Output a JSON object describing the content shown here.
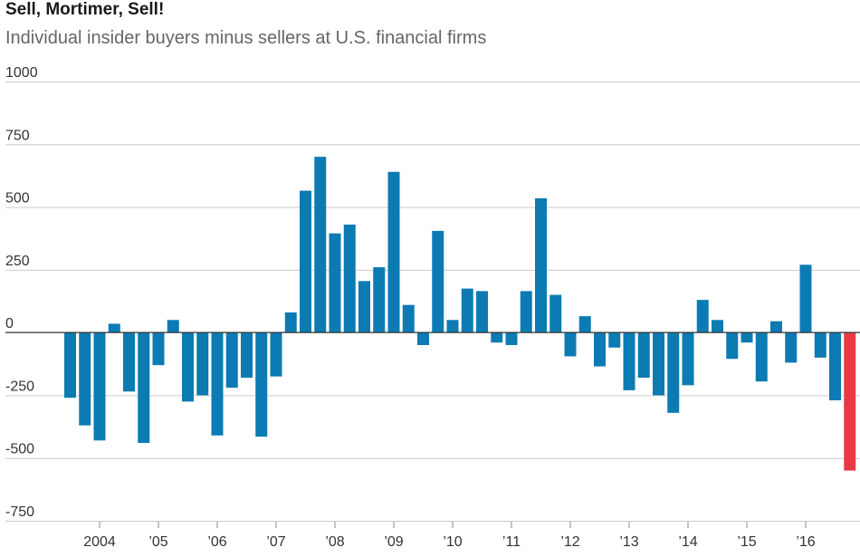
{
  "title": "Sell, Mortimer, Sell!",
  "subtitle": "Individual insider buyers minus sellers at U.S. financial firms",
  "colors": {
    "bar": "#0c7bb3",
    "highlight": "#e83a45",
    "grid": "#cccccc",
    "zero_line": "#333333"
  },
  "chart_data": {
    "type": "bar",
    "title": "Sell, Mortimer, Sell!",
    "subtitle": "Individual insider buyers minus sellers at U.S. financial firms",
    "grid": true,
    "ylim": [
      -750,
      1000
    ],
    "y_ticks": [
      {
        "value": 1000,
        "label": "1000"
      },
      {
        "value": 750,
        "label": "750"
      },
      {
        "value": 500,
        "label": "500"
      },
      {
        "value": 250,
        "label": "250"
      },
      {
        "value": 0,
        "label": "0"
      },
      {
        "value": -250,
        "label": "-250"
      },
      {
        "value": -500,
        "label": "-500"
      },
      {
        "value": -750,
        "label": "-750"
      }
    ],
    "x_ticks": [
      {
        "quarter_index": 2,
        "label": "2004"
      },
      {
        "quarter_index": 6,
        "label": "’05"
      },
      {
        "quarter_index": 10,
        "label": "’06"
      },
      {
        "quarter_index": 14,
        "label": "’07"
      },
      {
        "quarter_index": 18,
        "label": "’08"
      },
      {
        "quarter_index": 22,
        "label": "’09"
      },
      {
        "quarter_index": 26,
        "label": "’10"
      },
      {
        "quarter_index": 30,
        "label": "’11"
      },
      {
        "quarter_index": 34,
        "label": "’12"
      },
      {
        "quarter_index": 38,
        "label": "’13"
      },
      {
        "quarter_index": 42,
        "label": "’14"
      },
      {
        "quarter_index": 46,
        "label": "’15"
      },
      {
        "quarter_index": 50,
        "label": "’16"
      }
    ],
    "frequency": "quarterly",
    "start": "2003 Q4",
    "values": [
      -260,
      -370,
      -430,
      35,
      -235,
      -440,
      -130,
      50,
      -275,
      -250,
      -410,
      -220,
      -180,
      -415,
      -175,
      80,
      565,
      700,
      395,
      430,
      205,
      260,
      640,
      110,
      -50,
      405,
      50,
      175,
      165,
      -40,
      -50,
      165,
      535,
      150,
      -95,
      65,
      -135,
      -60,
      -230,
      -180,
      -250,
      -320,
      -210,
      130,
      50,
      -105,
      -40,
      -195,
      45,
      -120,
      270,
      -100,
      -270,
      -550
    ],
    "highlight_index": 53
  }
}
